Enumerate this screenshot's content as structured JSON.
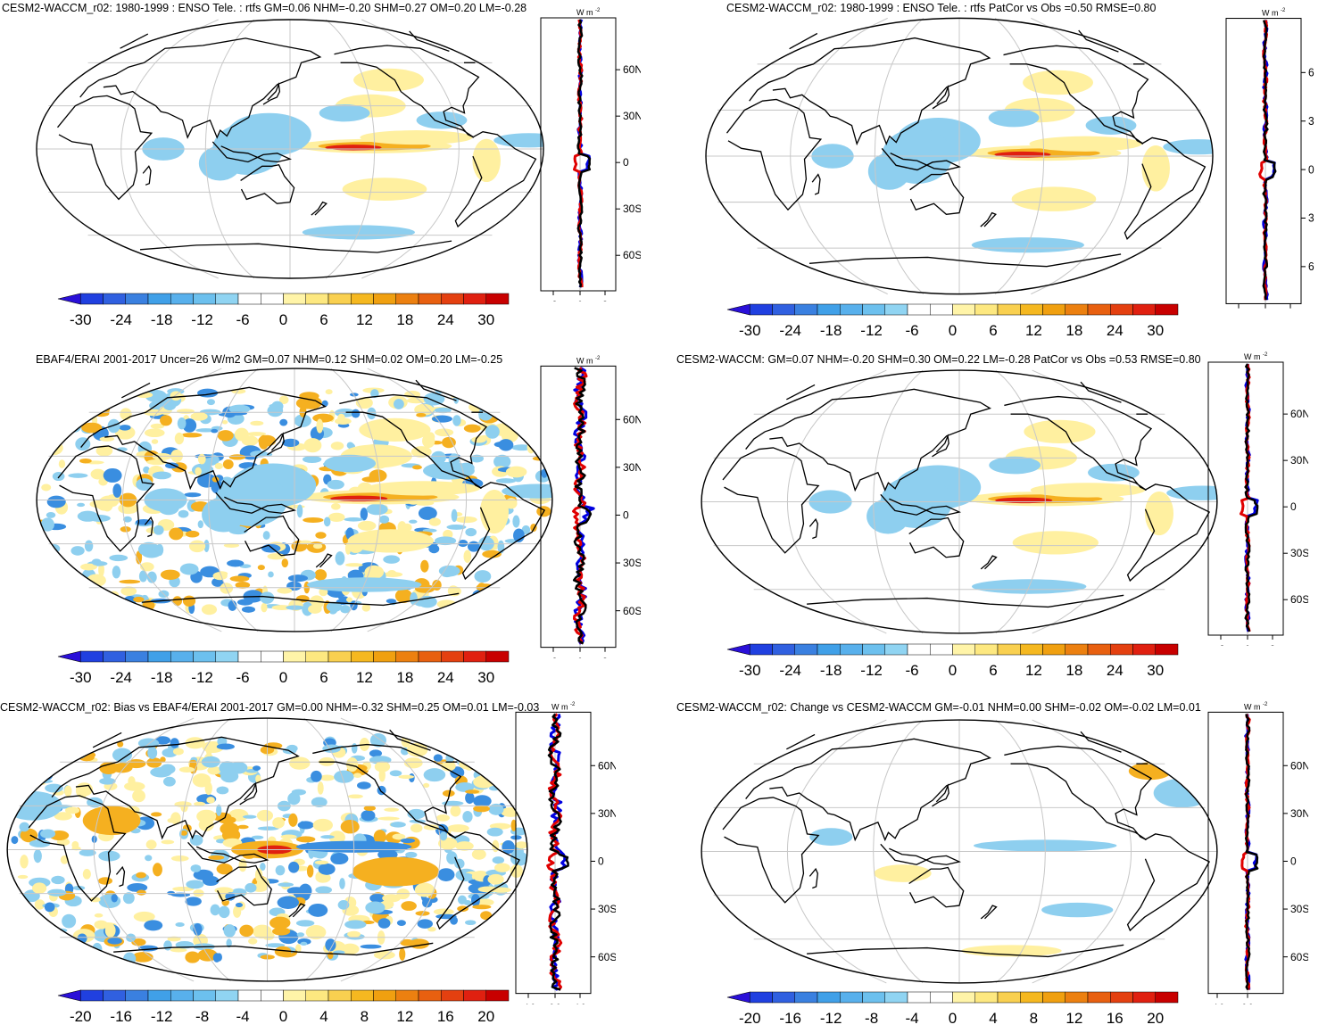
{
  "figure": {
    "units_label": "W m",
    "units_exp": "-2",
    "lat_ticks": [
      "60N",
      "30N",
      "0",
      "30S",
      "60S"
    ],
    "colors": {
      "land_outline": "#000000",
      "grid": "#c8c8c8",
      "neg_strong": "#1e1ed8",
      "neg_mid": "#3a8ee0",
      "neg_weak": "#8ecfef",
      "pos_weak": "#fff0a0",
      "pos_mid": "#f5b020",
      "pos_strong": "#e02010",
      "model_line": "#e00000",
      "obs_line": "#0000e0",
      "mean_line": "#000000"
    }
  },
  "panels": [
    {
      "id": "a",
      "title": "CESM2-WACCM_r02: 1980-1999 : ENSO Tele. : rtfs GM=0.06 NHM=-0.20 SHM=0.27 OM=0.20 LM=-0.28",
      "colorbar_labels": [
        "-30",
        "-24",
        "-18",
        "-12",
        "-6",
        "0",
        "6",
        "12",
        "18",
        "24",
        "30"
      ],
      "side_ticks": [
        "-8",
        "0",
        "8"
      ],
      "lat_labels": [
        "60N",
        "30N",
        "0",
        "30S",
        "60S"
      ]
    },
    {
      "id": "b",
      "title": "CESM2-WACCM_r02: 1980-1999 : ENSO Tele. : rtfs PatCor vs Obs =0.50 RMSE=0.80",
      "colorbar_labels": [
        "-30",
        "-24",
        "-18",
        "-12",
        "-6",
        "0",
        "6",
        "12",
        "18",
        "24",
        "30"
      ],
      "side_ticks": [
        "-8",
        "0",
        "8"
      ],
      "lat_labels": [
        "6",
        "3",
        "0",
        "3",
        "6"
      ]
    },
    {
      "id": "c",
      "title": "EBAF4/ERAI 2001-2017 Uncer=26 W/m2 GM=0.07 NHM=0.12 SHM=0.02 OM=0.20 LM=-0.25",
      "colorbar_labels": [
        "-30",
        "-24",
        "-18",
        "-12",
        "-6",
        "0",
        "6",
        "12",
        "18",
        "24",
        "30"
      ],
      "side_ticks": [
        "-8",
        "0",
        "8"
      ],
      "lat_labels": [
        "60N",
        "30N",
        "0",
        "30S",
        "60S"
      ]
    },
    {
      "id": "d",
      "title": "CESM2-WACCM: GM=0.07 NHM=-0.20 SHM=0.30 OM=0.22 LM=-0.28 PatCor vs Obs =0.53 RMSE=0.80",
      "colorbar_labels": [
        "-30",
        "-24",
        "-18",
        "-12",
        "-6",
        "0",
        "6",
        "12",
        "18",
        "24",
        "30"
      ],
      "side_ticks": [
        "-8",
        "0",
        "8"
      ],
      "lat_labels": [
        "60N",
        "30N",
        "0",
        "30S",
        "60S"
      ]
    },
    {
      "id": "e",
      "title": "CESM2-WACCM_r02: Bias vs EBAF4/ERAI 2001-2017 GM=0.00 NHM=-0.32 SHM=0.25 OM=0.01 LM=-0.03",
      "colorbar_labels": [
        "-20",
        "-16",
        "-12",
        "-8",
        "-4",
        "0",
        "4",
        "8",
        "12",
        "16",
        "20"
      ],
      "side_ticks": [
        "-4.0",
        "0.0",
        "4.0"
      ],
      "lat_labels": [
        "60N",
        "30N",
        "0",
        "30S",
        "60S"
      ]
    },
    {
      "id": "f",
      "title": "CESM2-WACCM_r02: Change vs CESM2-WACCM GM=-0.01 NHM=0.00 SHM=-0.02 OM=-0.02 LM=0.01",
      "colorbar_labels": [
        "-20",
        "-16",
        "-12",
        "-8",
        "-4",
        "0",
        "4",
        "8",
        "12",
        "16",
        "20"
      ],
      "side_ticks": [
        "-4.0",
        "0.0"
      ],
      "lat_labels": [
        "60N",
        "30N",
        "0",
        "30S",
        "60S"
      ]
    }
  ],
  "chart_data": [
    {
      "type": "heatmap",
      "title": "CESM2-WACCM_r02: 1980-1999 : ENSO Tele. : rtfs GM=0.06 NHM=-0.20 SHM=0.27 OM=0.20 LM=-0.28",
      "colorbar_range": [
        -30,
        30
      ],
      "colorbar_ticks": [
        -30,
        -24,
        -18,
        -12,
        -6,
        0,
        6,
        12,
        18,
        24,
        30
      ],
      "zonal_mean_xlim": [
        -8,
        8
      ],
      "lat_ticks": [
        "60N",
        "30N",
        "0",
        "30S",
        "60S"
      ]
    },
    {
      "type": "heatmap",
      "title": "CESM2-WACCM_r02: 1980-1999 : ENSO Tele. : rtfs PatCor vs Obs =0.50 RMSE=0.80",
      "colorbar_range": [
        -30,
        30
      ],
      "colorbar_ticks": [
        -30,
        -24,
        -18,
        -12,
        -6,
        0,
        6,
        12,
        18,
        24,
        30
      ],
      "zonal_mean_xlim": [
        -8,
        8
      ],
      "pattern_correlation": 0.5,
      "rmse": 0.8
    },
    {
      "type": "heatmap",
      "title": "EBAF4/ERAI 2001-2017 Uncer=26 W/m2 GM=0.07 NHM=0.12 SHM=0.02 OM=0.20 LM=-0.25",
      "colorbar_range": [
        -30,
        30
      ],
      "colorbar_ticks": [
        -30,
        -24,
        -18,
        -12,
        -6,
        0,
        6,
        12,
        18,
        24,
        30
      ],
      "zonal_mean_xlim": [
        -8,
        8
      ]
    },
    {
      "type": "heatmap",
      "title": "CESM2-WACCM: GM=0.07 NHM=-0.20 SHM=0.30 OM=0.22 LM=-0.28 PatCor vs Obs =0.53 RMSE=0.80",
      "colorbar_range": [
        -30,
        30
      ],
      "colorbar_ticks": [
        -30,
        -24,
        -18,
        -12,
        -6,
        0,
        6,
        12,
        18,
        24,
        30
      ],
      "zonal_mean_xlim": [
        -8,
        8
      ]
    },
    {
      "type": "heatmap",
      "title": "CESM2-WACCM_r02: Bias vs EBAF4/ERAI 2001-2017 GM=0.00 NHM=-0.32 SHM=0.25 OM=0.01 LM=-0.03",
      "colorbar_range": [
        -20,
        20
      ],
      "colorbar_ticks": [
        -20,
        -16,
        -12,
        -8,
        -4,
        0,
        4,
        8,
        12,
        16,
        20
      ],
      "zonal_mean_xlim": [
        -4,
        4
      ]
    },
    {
      "type": "heatmap",
      "title": "CESM2-WACCM_r02: Change vs CESM2-WACCM GM=-0.01 NHM=0.00 SHM=-0.02 OM=-0.02 LM=0.01",
      "colorbar_range": [
        -20,
        20
      ],
      "colorbar_ticks": [
        -20,
        -16,
        -12,
        -8,
        -4,
        0,
        4,
        8,
        12,
        16,
        20
      ],
      "zonal_mean_xlim": [
        -4,
        4
      ]
    }
  ]
}
